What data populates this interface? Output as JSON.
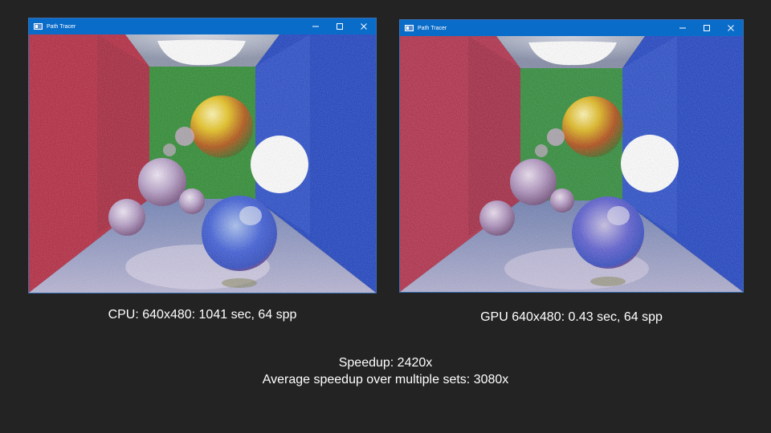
{
  "windows": [
    {
      "id": "cpu",
      "title": "Path Tracer",
      "controls": {
        "minimize": "minimize-icon",
        "maximize": "maximize-icon",
        "close": "close-icon"
      }
    },
    {
      "id": "gpu",
      "title": "Path Tracer",
      "controls": {
        "minimize": "minimize-icon",
        "maximize": "maximize-icon",
        "close": "close-icon"
      }
    }
  ],
  "captions": {
    "cpu": "CPU: 640x480: 1041 sec, 64 spp",
    "gpu": "GPU 640x480: 0.43 sec, 64 spp"
  },
  "summary": {
    "speedup": "Speedup: 2420x",
    "average": "Average speedup over multiple sets: 3080x"
  },
  "colors": {
    "background": "#232323",
    "titlebar": "#0a6cc9",
    "left_wall": "#b3243c",
    "right_wall": "#1a3fc0",
    "back_wall": "#2a8a2e",
    "floor": "#8a93c4"
  }
}
